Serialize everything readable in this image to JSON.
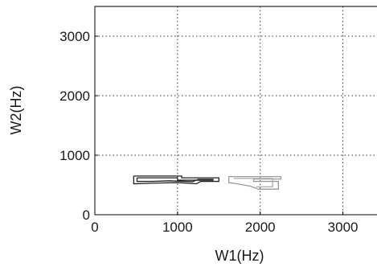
{
  "chart_data": {
    "type": "line",
    "xlabel": "W1(Hz)",
    "ylabel": "W2(Hz)",
    "xlim": [
      0,
      3500
    ],
    "ylim": [
      0,
      3500
    ],
    "xticks": [
      0,
      1000,
      2000,
      3000
    ],
    "yticks": [
      0,
      1000,
      2000,
      3000
    ],
    "xtick_labels": [
      "0",
      "1000",
      "2000",
      "3000"
    ],
    "ytick_labels": [
      "0",
      "1000",
      "2000",
      "3000"
    ],
    "grid": true,
    "series": [
      {
        "color": "#222222",
        "points": [
          [
            470,
            650
          ],
          [
            1050,
            650
          ],
          [
            1050,
            620
          ],
          [
            1500,
            620
          ],
          [
            1500,
            560
          ],
          [
            1280,
            560
          ],
          [
            1230,
            520
          ],
          [
            1000,
            540
          ],
          [
            700,
            530
          ],
          [
            470,
            520
          ],
          [
            470,
            650
          ]
        ]
      },
      {
        "color": "#222222",
        "points": [
          [
            510,
            620
          ],
          [
            1000,
            620
          ],
          [
            1000,
            580
          ],
          [
            1430,
            580
          ],
          [
            1430,
            595
          ],
          [
            1250,
            595
          ],
          [
            1180,
            555
          ],
          [
            900,
            570
          ],
          [
            700,
            560
          ],
          [
            510,
            560
          ],
          [
            510,
            620
          ]
        ]
      },
      {
        "color": "#999999",
        "points": [
          [
            1620,
            640
          ],
          [
            2250,
            640
          ],
          [
            2250,
            600
          ],
          [
            1920,
            600
          ],
          [
            1920,
            560
          ],
          [
            2220,
            560
          ],
          [
            2220,
            430
          ],
          [
            1980,
            430
          ],
          [
            1880,
            480
          ],
          [
            1720,
            520
          ],
          [
            1620,
            540
          ],
          [
            1620,
            640
          ]
        ]
      },
      {
        "color": "#aaaaaa",
        "points": [
          [
            1680,
            610
          ],
          [
            2150,
            610
          ],
          [
            2150,
            470
          ],
          [
            1950,
            470
          ]
        ]
      }
    ]
  }
}
